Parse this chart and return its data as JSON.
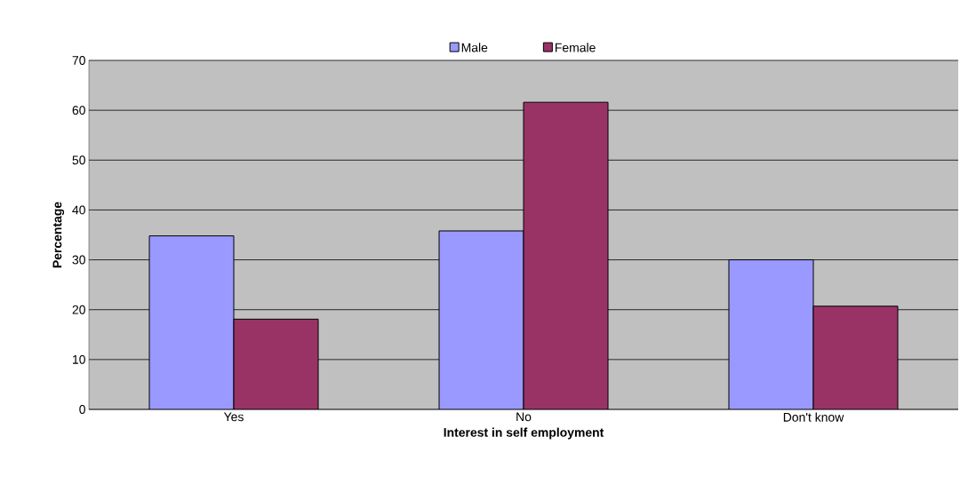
{
  "chart_data": {
    "type": "bar",
    "xlabel": "Interest in self employment",
    "ylabel": "Percentage",
    "categories": [
      "Yes",
      "No",
      "Don't know"
    ],
    "series": [
      {
        "name": "Male",
        "color": "#9999ff",
        "values": [
          34.8,
          35.8,
          30.0
        ]
      },
      {
        "name": "Female",
        "color": "#993366",
        "values": [
          18.1,
          61.6,
          20.7
        ]
      }
    ],
    "ylim": [
      0,
      70
    ],
    "yticks": [
      0,
      10,
      20,
      30,
      40,
      50,
      60,
      70
    ],
    "grid": "y",
    "legend": "top"
  }
}
